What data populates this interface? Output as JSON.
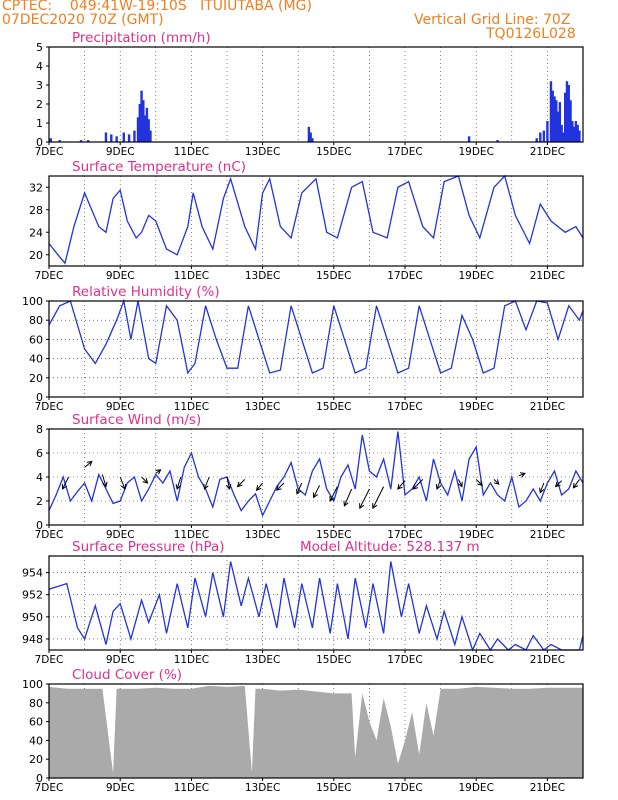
{
  "header": {
    "line1": "CPTEC:    049:41W-19:10S   ITUIUTABA (MG)",
    "line2": "07DEC2020 70Z (GMT)",
    "grid_line": "Vertical Grid Line: 70Z",
    "code": "TQ0126L028",
    "color": "#f07f20"
  },
  "colors": {
    "title": "#e0308a",
    "series": "#2233dd",
    "cloud": "#aaaaaa",
    "axis": "#000000",
    "grid": "#333333"
  },
  "x_ticks": [
    "7DEC",
    "9DEC",
    "11DEC",
    "13DEC",
    "15DEC",
    "17DEC",
    "19DEC",
    "21DEC"
  ],
  "chart_data": [
    {
      "type": "bar",
      "title": "Precipitation (mm/h)",
      "ylim": [
        0,
        5
      ],
      "yticks": [
        0,
        1,
        2,
        3,
        4,
        5
      ],
      "xlim_days": [
        7,
        22
      ],
      "series": [
        {
          "x": [
            7.05,
            7.3,
            7.9,
            8.1,
            8.6,
            8.75,
            8.9,
            9.1,
            9.25,
            9.4,
            9.5,
            9.55,
            9.6,
            9.65,
            9.7,
            9.75,
            9.8,
            9.85,
            14.3,
            14.35,
            14.4,
            18.8,
            19.6,
            20.7,
            20.8,
            20.9,
            21.0,
            21.1,
            21.15,
            21.2,
            21.25,
            21.3,
            21.35,
            21.4,
            21.45,
            21.5,
            21.55,
            21.6,
            21.65,
            21.7,
            21.75,
            21.8,
            21.85,
            21.9
          ],
          "values": [
            0.2,
            0.1,
            0.1,
            0.1,
            0.5,
            0.4,
            0.3,
            0.5,
            0.4,
            0.6,
            1.3,
            2.0,
            2.7,
            2.2,
            1.4,
            1.8,
            1.2,
            0.6,
            0.8,
            0.5,
            0.2,
            0.3,
            0.1,
            0.2,
            0.5,
            0.6,
            1.1,
            3.2,
            2.7,
            2.4,
            2.2,
            1.6,
            2.1,
            0.9,
            0.5,
            2.6,
            3.2,
            3.0,
            2.2,
            1.1,
            0.8,
            1.1,
            0.9,
            0.6
          ]
        }
      ]
    },
    {
      "type": "line",
      "title": "Surface Temperature (nC)",
      "ylim": [
        18,
        34
      ],
      "yticks": [
        20,
        24,
        28,
        32
      ],
      "series": [
        {
          "x": [
            7.0,
            7.25,
            7.45,
            7.7,
            8.0,
            8.2,
            8.4,
            8.6,
            8.8,
            9.0,
            9.2,
            9.45,
            9.6,
            9.8,
            10.0,
            10.3,
            10.6,
            10.9,
            11.05,
            11.3,
            11.6,
            11.9,
            12.1,
            12.5,
            12.8,
            13.0,
            13.2,
            13.5,
            13.8,
            14.1,
            14.5,
            14.8,
            15.1,
            15.5,
            15.8,
            16.1,
            16.5,
            16.8,
            17.1,
            17.5,
            17.8,
            18.1,
            18.5,
            18.8,
            19.1,
            19.5,
            19.8,
            20.1,
            20.5,
            20.8,
            21.1,
            21.5,
            21.8,
            22.0
          ],
          "values": [
            22,
            20,
            18.5,
            25,
            31,
            28,
            25,
            24,
            30,
            31.5,
            26,
            23,
            24,
            27,
            26,
            21,
            20,
            25,
            31,
            25,
            21,
            30,
            33.5,
            25,
            21,
            31,
            33.5,
            25,
            23,
            31,
            33.5,
            24,
            23,
            32,
            33,
            24,
            23,
            32,
            33,
            25,
            23,
            33,
            34,
            27,
            23,
            32,
            34,
            27,
            22,
            29,
            26,
            24,
            25,
            23
          ]
        }
      ]
    },
    {
      "type": "line",
      "title": "Relative Humidity (%)",
      "ylim": [
        0,
        100
      ],
      "yticks": [
        0,
        20,
        40,
        60,
        80,
        100
      ],
      "series": [
        {
          "x": [
            7.0,
            7.3,
            7.6,
            8.0,
            8.3,
            8.6,
            8.9,
            9.1,
            9.3,
            9.5,
            9.8,
            10.0,
            10.3,
            10.6,
            10.9,
            11.1,
            11.4,
            11.7,
            12.0,
            12.3,
            12.6,
            12.9,
            13.2,
            13.5,
            13.8,
            14.1,
            14.4,
            14.7,
            15.0,
            15.3,
            15.6,
            15.9,
            16.2,
            16.5,
            16.8,
            17.1,
            17.4,
            17.7,
            18.0,
            18.3,
            18.6,
            18.9,
            19.2,
            19.5,
            19.8,
            20.1,
            20.4,
            20.7,
            21.0,
            21.3,
            21.6,
            21.9,
            22.0
          ],
          "values": [
            75,
            95,
            100,
            50,
            35,
            55,
            80,
            100,
            60,
            100,
            40,
            35,
            95,
            80,
            25,
            35,
            95,
            60,
            30,
            30,
            95,
            60,
            25,
            28,
            95,
            60,
            25,
            30,
            95,
            60,
            25,
            30,
            95,
            60,
            25,
            30,
            95,
            60,
            25,
            30,
            85,
            60,
            25,
            30,
            95,
            100,
            70,
            100,
            98,
            60,
            95,
            80,
            90
          ]
        }
      ]
    },
    {
      "type": "line",
      "title": "Surface Wind (m/s)",
      "ylim": [
        0,
        8
      ],
      "yticks": [
        0,
        2,
        4,
        6,
        8
      ],
      "series": [
        {
          "x": [
            7.0,
            7.2,
            7.4,
            7.6,
            7.8,
            8.0,
            8.2,
            8.4,
            8.6,
            8.8,
            9.0,
            9.2,
            9.4,
            9.6,
            9.8,
            10.0,
            10.2,
            10.4,
            10.6,
            10.8,
            11.0,
            11.2,
            11.4,
            11.6,
            11.8,
            12.0,
            12.2,
            12.4,
            12.6,
            12.8,
            13.0,
            13.2,
            13.4,
            13.6,
            13.8,
            14.0,
            14.2,
            14.4,
            14.6,
            14.8,
            15.0,
            15.2,
            15.4,
            15.6,
            15.8,
            16.0,
            16.2,
            16.4,
            16.6,
            16.8,
            17.0,
            17.2,
            17.4,
            17.6,
            17.8,
            18.0,
            18.2,
            18.4,
            18.6,
            18.8,
            19.0,
            19.2,
            19.4,
            19.6,
            19.8,
            20.0,
            20.2,
            20.4,
            20.6,
            20.8,
            21.0,
            21.2,
            21.4,
            21.6,
            21.8,
            22.0
          ],
          "values": [
            1.2,
            2.5,
            4.0,
            2.0,
            2.8,
            3.5,
            2.0,
            4.2,
            3.0,
            1.8,
            2.0,
            3.5,
            4.0,
            2.0,
            3.0,
            4.2,
            3.5,
            4.5,
            2.0,
            4.8,
            6.0,
            4.0,
            3.0,
            1.5,
            3.8,
            4.0,
            2.5,
            1.2,
            2.0,
            2.6,
            0.8,
            2.0,
            3.2,
            4.0,
            5.2,
            3.0,
            2.5,
            4.5,
            5.5,
            3.0,
            2.0,
            4.0,
            5.0,
            3.0,
            7.5,
            4.5,
            4.0,
            5.5,
            3.0,
            7.8,
            2.5,
            3.0,
            4.0,
            2.0,
            5.5,
            3.5,
            2.5,
            4.5,
            2.0,
            5.5,
            6.5,
            2.5,
            3.5,
            2.5,
            2.0,
            4.0,
            1.5,
            2.0,
            3.0,
            2.0,
            3.5,
            4.5,
            2.5,
            3.0,
            4.5,
            3.5
          ]
        }
      ]
    },
    {
      "type": "line",
      "title": "Surface Pressure (hPa)",
      "annotation": "Model Altitude: 528.137  m",
      "ylim": [
        947,
        955.5
      ],
      "yticks": [
        948,
        950,
        952,
        954
      ],
      "series": [
        {
          "x": [
            7.0,
            7.3,
            7.5,
            7.8,
            8.0,
            8.3,
            8.6,
            8.8,
            9.0,
            9.3,
            9.6,
            9.8,
            10.1,
            10.3,
            10.6,
            10.9,
            11.1,
            11.4,
            11.6,
            11.9,
            12.1,
            12.4,
            12.6,
            12.9,
            13.1,
            13.4,
            13.6,
            13.9,
            14.1,
            14.4,
            14.6,
            14.9,
            15.1,
            15.4,
            15.6,
            15.9,
            16.1,
            16.4,
            16.6,
            16.9,
            17.1,
            17.4,
            17.6,
            17.9,
            18.1,
            18.4,
            18.6,
            18.9,
            19.1,
            19.4,
            19.6,
            19.9,
            20.1,
            20.4,
            20.6,
            20.9,
            21.1,
            21.4,
            21.6,
            21.9,
            22.0
          ],
          "values": [
            952.5,
            952.8,
            953.0,
            949.0,
            948.0,
            951.0,
            947.5,
            950.5,
            951.2,
            948.0,
            951.5,
            949.5,
            952.0,
            948.5,
            953.0,
            949.0,
            953.5,
            950.0,
            954.0,
            950.0,
            955.0,
            951.0,
            953.5,
            950.0,
            953.0,
            949.0,
            953.5,
            949.0,
            953.0,
            949.0,
            953.5,
            948.5,
            953.0,
            948.0,
            953.5,
            949.0,
            953.0,
            948.5,
            955.0,
            950.0,
            953.0,
            948.5,
            951.0,
            948.0,
            950.5,
            947.5,
            950.0,
            947.0,
            948.5,
            947.0,
            948.0,
            946.5,
            947.5,
            946.8,
            948.3,
            946.5,
            947.5,
            946.5,
            947.0,
            947.0,
            948.3
          ]
        }
      ]
    },
    {
      "type": "bar",
      "title": "Cloud Cover (%)",
      "ylim": [
        0,
        100
      ],
      "yticks": [
        0,
        20,
        40,
        60,
        80,
        100
      ],
      "series": [
        {
          "x": [
            7.0,
            7.5,
            8.0,
            8.5,
            8.8,
            8.9,
            9.0,
            9.5,
            10.0,
            10.5,
            11.0,
            11.5,
            12.0,
            12.5,
            12.7,
            12.8,
            13.0,
            13.5,
            14.0,
            14.5,
            15.0,
            15.5,
            15.6,
            15.8,
            16.0,
            16.2,
            16.4,
            16.6,
            16.8,
            17.0,
            17.2,
            17.4,
            17.6,
            17.8,
            18.0,
            18.5,
            19.0,
            19.5,
            20.0,
            20.5,
            21.0,
            21.5,
            22.0
          ],
          "values": [
            97,
            95,
            95,
            95,
            5,
            95,
            95,
            95,
            96,
            95,
            95,
            98,
            97,
            98,
            6,
            95,
            95,
            93,
            94,
            92,
            90,
            90,
            22,
            90,
            60,
            40,
            85,
            55,
            15,
            40,
            70,
            25,
            80,
            45,
            95,
            95,
            97,
            96,
            95,
            95,
            96,
            96,
            96
          ]
        }
      ]
    }
  ]
}
